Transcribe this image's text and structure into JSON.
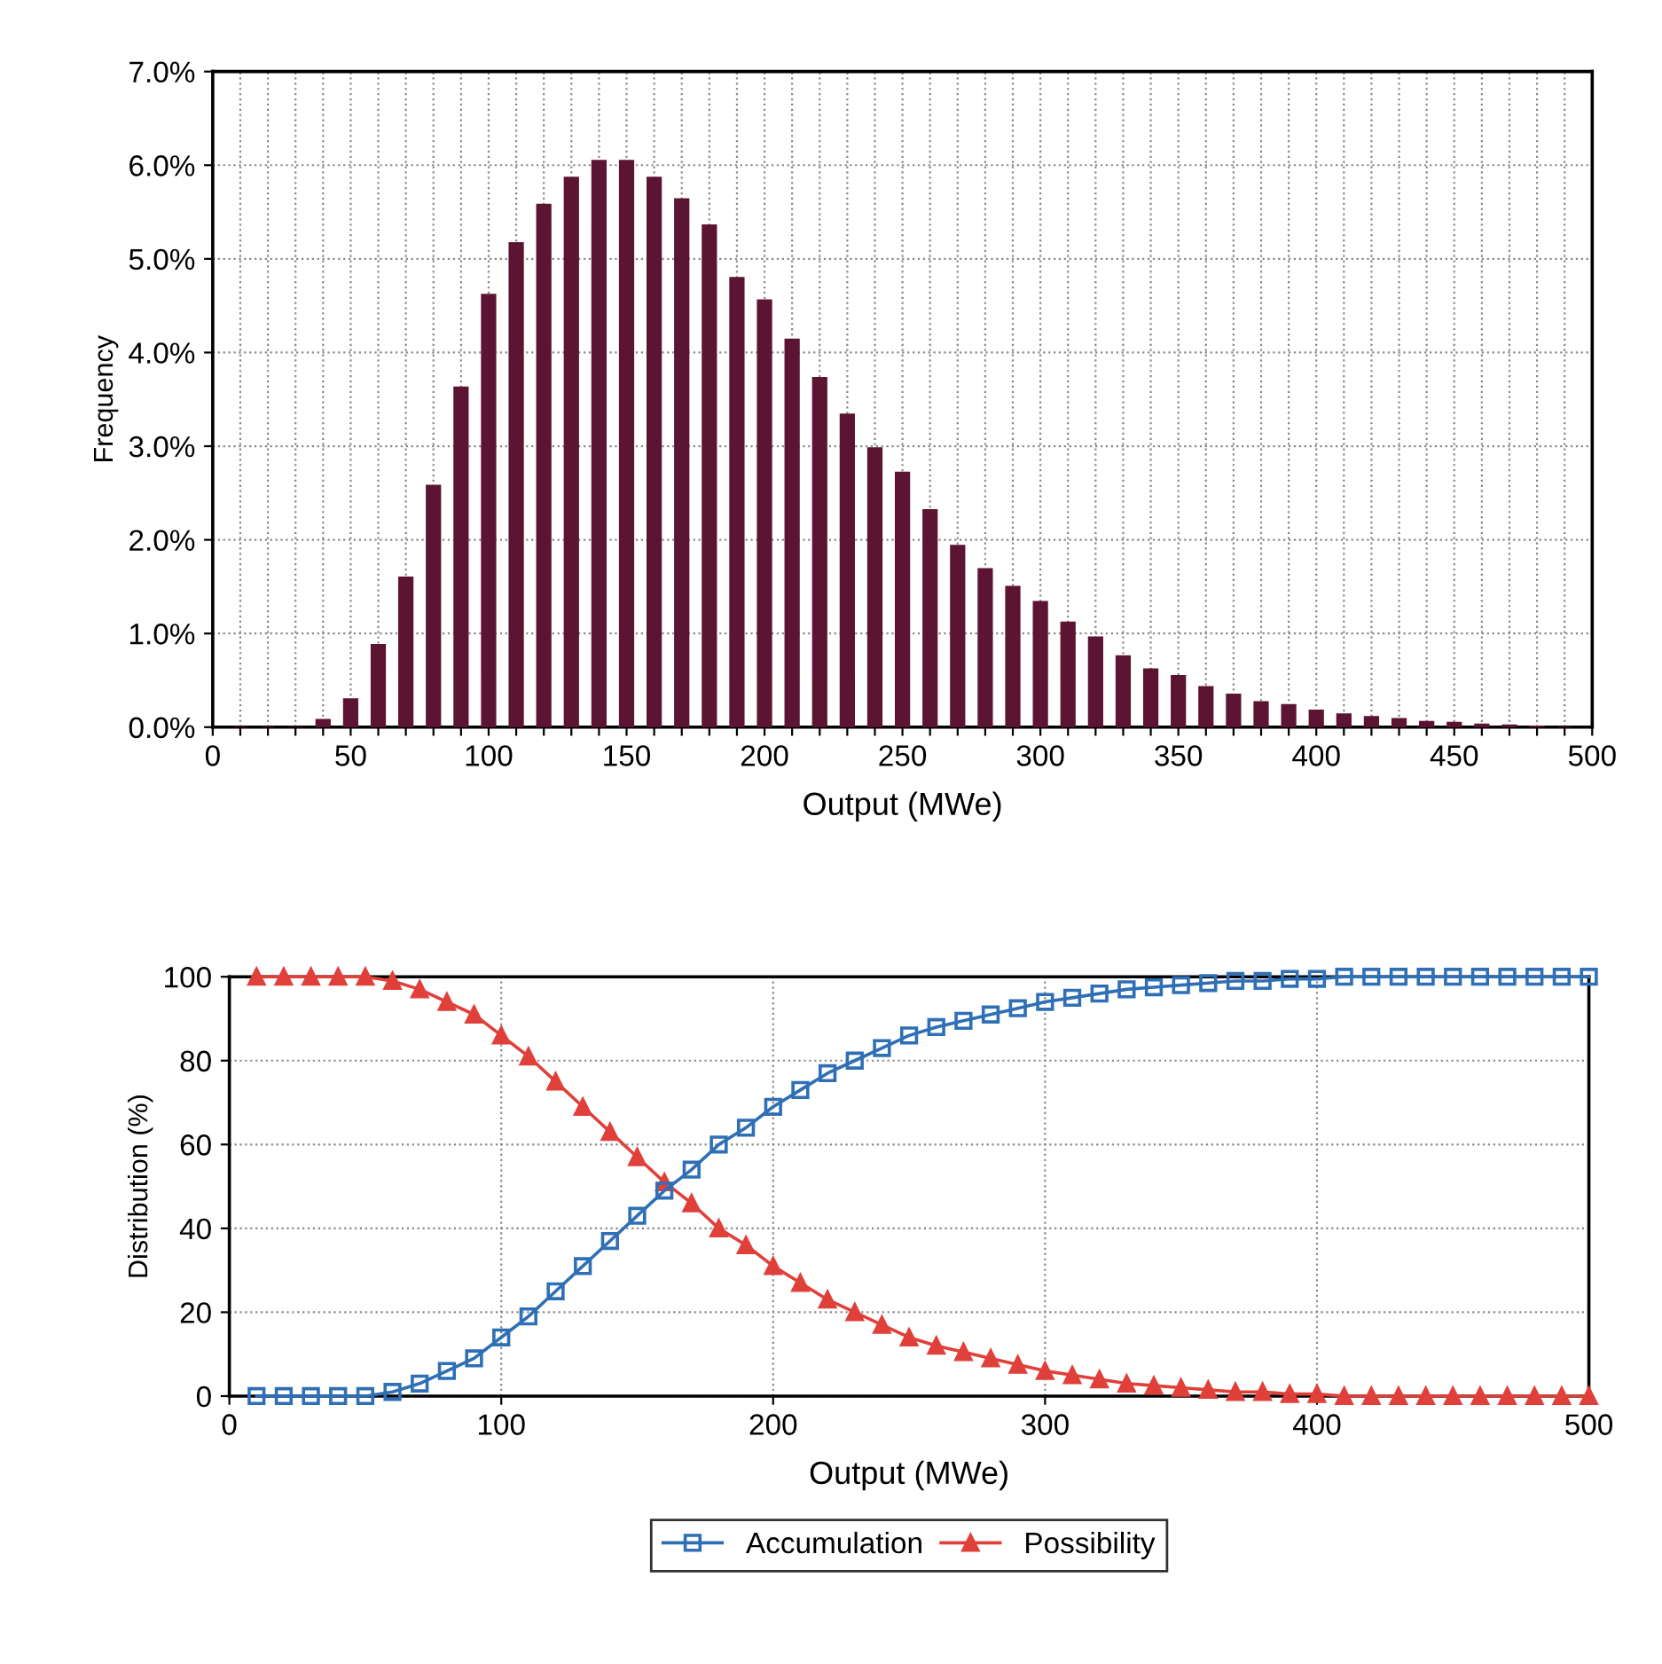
{
  "chart_data": [
    {
      "type": "bar",
      "xlabel": "Output (MWe)",
      "ylabel": "Frequency",
      "grid": true,
      "legend": false,
      "x": [
        10,
        20,
        30,
        40,
        50,
        60,
        70,
        80,
        90,
        100,
        110,
        120,
        130,
        140,
        150,
        160,
        170,
        180,
        190,
        200,
        210,
        220,
        230,
        240,
        250,
        260,
        270,
        280,
        290,
        300,
        310,
        320,
        330,
        340,
        350,
        360,
        370,
        380,
        390,
        400,
        410,
        420,
        430,
        440,
        450,
        460,
        470,
        480,
        490
      ],
      "series": [
        {
          "color": "#5c1433",
          "values": [
            0,
            0,
            0,
            0.08,
            0.3,
            0.88,
            1.6,
            2.58,
            3.63,
            4.62,
            5.17,
            5.58,
            5.87,
            6.05,
            6.05,
            5.87,
            5.64,
            5.36,
            4.8,
            4.56,
            4.14,
            3.73,
            3.34,
            2.98,
            2.72,
            2.32,
            1.94,
            1.69,
            1.5,
            1.34,
            1.12,
            0.96,
            0.76,
            0.62,
            0.55,
            0.43,
            0.35,
            0.27,
            0.24,
            0.18,
            0.14,
            0.11,
            0.09,
            0.06,
            0.05,
            0.03,
            0.02,
            0.01,
            0
          ]
        }
      ],
      "xlim": [
        0,
        500
      ],
      "xticks": [
        0,
        {
          "value": 10,
          "label": null
        },
        {
          "value": 20,
          "label": null
        },
        {
          "value": 30,
          "label": null
        },
        {
          "value": 40,
          "label": null
        },
        50,
        {
          "value": 60,
          "label": null
        },
        {
          "value": 70,
          "label": null
        },
        {
          "value": 80,
          "label": null
        },
        {
          "value": 90,
          "label": null
        },
        100,
        {
          "value": 110,
          "label": null
        },
        {
          "value": 120,
          "label": null
        },
        {
          "value": 130,
          "label": null
        },
        {
          "value": 140,
          "label": null
        },
        150,
        {
          "value": 160,
          "label": null
        },
        {
          "value": 170,
          "label": null
        },
        {
          "value": 180,
          "label": null
        },
        {
          "value": 190,
          "label": null
        },
        200,
        {
          "value": 210,
          "label": null
        },
        {
          "value": 220,
          "label": null
        },
        {
          "value": 230,
          "label": null
        },
        {
          "value": 240,
          "label": null
        },
        250,
        {
          "value": 260,
          "label": null
        },
        {
          "value": 270,
          "label": null
        },
        {
          "value": 280,
          "label": null
        },
        {
          "value": 290,
          "label": null
        },
        300,
        {
          "value": 310,
          "label": null
        },
        {
          "value": 320,
          "label": null
        },
        {
          "value": 330,
          "label": null
        },
        {
          "value": 340,
          "label": null
        },
        350,
        {
          "value": 360,
          "label": null
        },
        {
          "value": 370,
          "label": null
        },
        {
          "value": 380,
          "label": null
        },
        {
          "value": 390,
          "label": null
        },
        400,
        {
          "value": 410,
          "label": null
        },
        {
          "value": 420,
          "label": null
        },
        {
          "value": 430,
          "label": null
        },
        {
          "value": 440,
          "label": null
        },
        450,
        {
          "value": 460,
          "label": null
        },
        {
          "value": 470,
          "label": null
        },
        {
          "value": 480,
          "label": null
        },
        {
          "value": 490,
          "label": null
        },
        500
      ],
      "ylim": [
        0,
        7
      ],
      "yticks": [
        {
          "value": 0,
          "label": "0.0%"
        },
        {
          "value": 1,
          "label": "1.0%"
        },
        {
          "value": 2,
          "label": "2.0%"
        },
        {
          "value": 3,
          "label": "3.0%"
        },
        {
          "value": 4,
          "label": "4.0%"
        },
        {
          "value": 5,
          "label": "5.0%"
        },
        {
          "value": 6,
          "label": "6.0%"
        },
        {
          "value": 7,
          "label": "7.0%"
        }
      ]
    },
    {
      "type": "line",
      "xlabel": "Output (MWe)",
      "ylabel": "Distribution (%)",
      "grid": true,
      "legend": "bottom",
      "x": [
        10,
        20,
        30,
        40,
        50,
        60,
        70,
        80,
        90,
        100,
        110,
        120,
        130,
        140,
        150,
        160,
        170,
        180,
        190,
        200,
        210,
        220,
        230,
        240,
        250,
        260,
        270,
        280,
        290,
        300,
        310,
        320,
        330,
        340,
        350,
        360,
        370,
        380,
        390,
        400,
        410,
        420,
        430,
        440,
        450,
        460,
        470,
        480,
        490,
        500
      ],
      "series": [
        {
          "name": "Accumulation",
          "color": "#2f6fb5",
          "marker": "square",
          "values": [
            0,
            0,
            0,
            0,
            0,
            1,
            3,
            6,
            9,
            14,
            19,
            25,
            31,
            37,
            43,
            49,
            54,
            60,
            64,
            69,
            73,
            77,
            80,
            83,
            86,
            88,
            89.5,
            91,
            92.5,
            94,
            95,
            96,
            97,
            97.5,
            98,
            98.5,
            99,
            99,
            99.5,
            99.5,
            100,
            100,
            100,
            100,
            100,
            100,
            100,
            100,
            100,
            100
          ]
        },
        {
          "name": "Possibility",
          "color": "#e0403a",
          "marker": "triangle",
          "values": [
            100,
            100,
            100,
            100,
            100,
            99,
            97,
            94,
            91,
            86,
            81,
            75,
            69,
            63,
            57,
            51,
            46,
            40,
            36,
            31,
            27,
            23,
            20,
            17,
            14,
            12,
            10.5,
            9,
            7.5,
            6,
            5,
            4,
            3,
            2.5,
            2,
            1.5,
            1,
            1,
            0.5,
            0.5,
            0,
            0,
            0,
            0,
            0,
            0,
            0,
            0,
            0,
            0
          ]
        }
      ],
      "xlim": [
        0,
        500
      ],
      "xticks": [
        0,
        100,
        200,
        300,
        400,
        500
      ],
      "ylim": [
        0,
        100
      ],
      "yticks": [
        0,
        20,
        40,
        60,
        80,
        100
      ]
    }
  ]
}
